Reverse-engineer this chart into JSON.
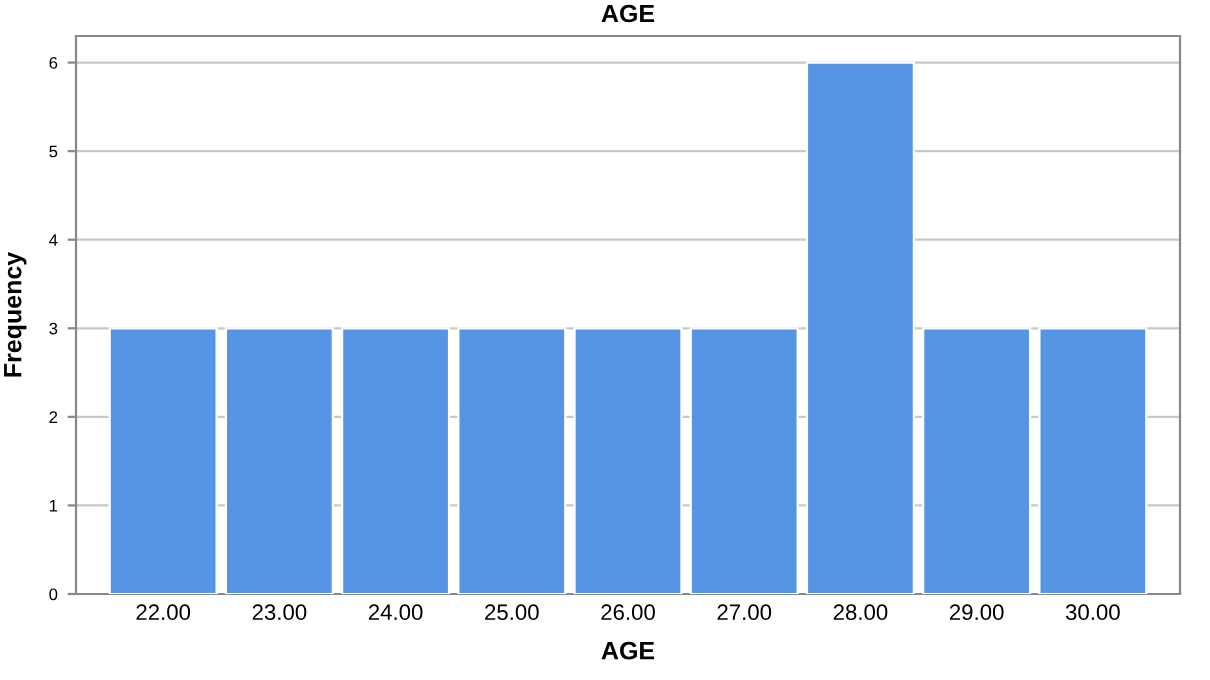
{
  "chart_data": {
    "type": "bar",
    "title": "AGE",
    "xlabel": "AGE",
    "ylabel": "Frequency",
    "categories": [
      "22.00",
      "23.00",
      "24.00",
      "25.00",
      "26.00",
      "27.00",
      "28.00",
      "29.00",
      "30.00"
    ],
    "values": [
      3,
      3,
      3,
      3,
      3,
      3,
      6,
      3,
      3
    ],
    "color": "#5595e3",
    "ylim": [
      0,
      6.3
    ],
    "yticks": [
      0,
      1,
      2,
      3,
      4,
      5,
      6
    ],
    "grid": "y"
  }
}
